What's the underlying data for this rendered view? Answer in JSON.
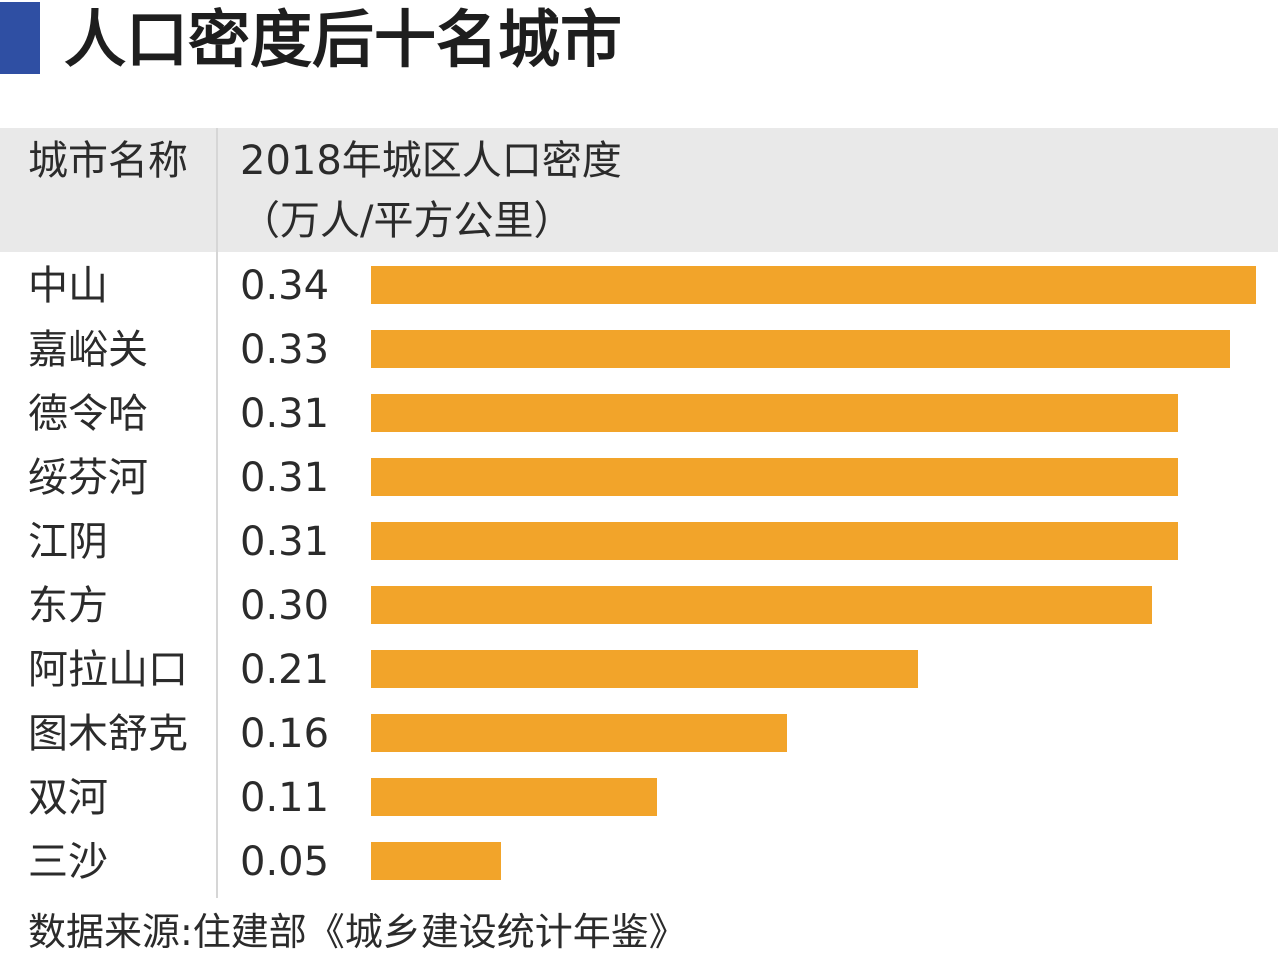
{
  "title": "人口密度后十名城市",
  "header": {
    "city_col": "城市名称",
    "metric_col": "2018年城区人口密度",
    "unit": "（万人/平方公里）"
  },
  "colors": {
    "bar": "#f2a42a",
    "accent": "#2f4fa3",
    "header_bg": "#e9e9e9"
  },
  "chart_data": {
    "type": "bar",
    "orientation": "horizontal",
    "categories": [
      "中山",
      "嘉峪关",
      "德令哈",
      "绥芬河",
      "江阴",
      "东方",
      "阿拉山口",
      "图木舒克",
      "双河",
      "三沙"
    ],
    "values": [
      0.34,
      0.33,
      0.31,
      0.31,
      0.31,
      0.3,
      0.21,
      0.16,
      0.11,
      0.05
    ],
    "value_labels": [
      "0.34",
      "0.33",
      "0.31",
      "0.31",
      "0.31",
      "0.30",
      "0.21",
      "0.16",
      "0.11",
      "0.05"
    ],
    "title": "人口密度后十名城市",
    "xlim": [
      0,
      0.34
    ],
    "grid": false,
    "legend": "none"
  },
  "source": "数据来源:住建部《城乡建设统计年鉴》"
}
